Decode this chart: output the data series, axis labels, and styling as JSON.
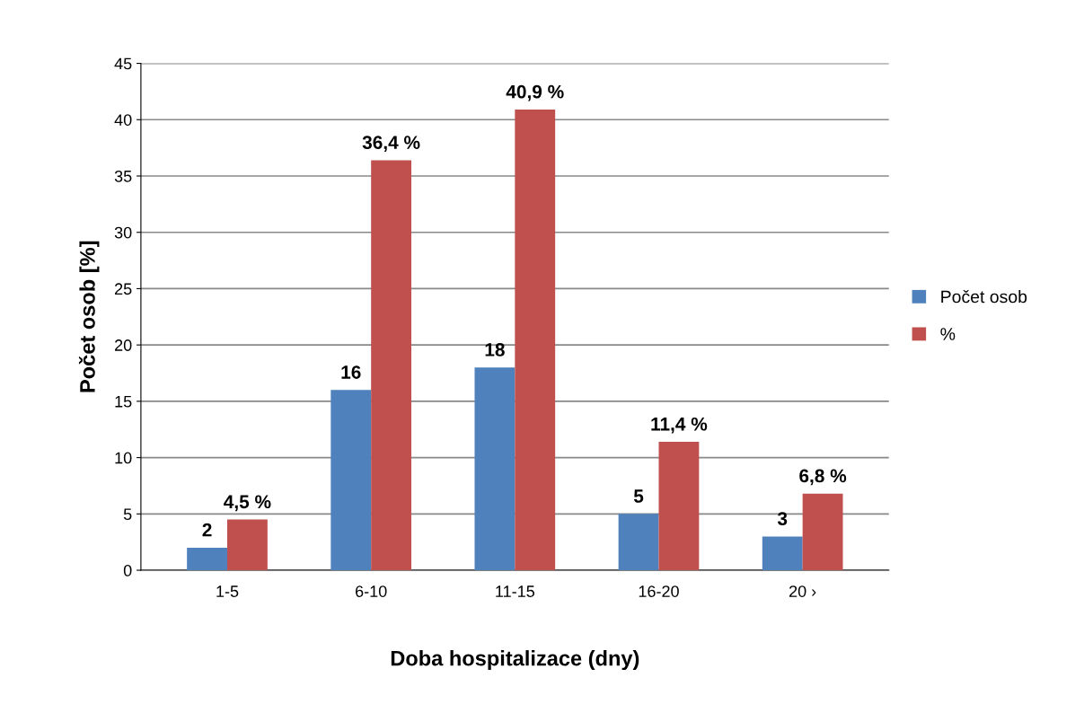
{
  "chart_data": {
    "type": "bar",
    "xlabel": "Doba hospitalizace (dny)",
    "ylabel": "Počet osob [%]",
    "categories": [
      "1-5",
      "6-10",
      "11-15",
      "16-20",
      "20 ›"
    ],
    "series": [
      {
        "name": "Počet osob",
        "color": "#4f81bd",
        "values": [
          2,
          16,
          18,
          5,
          3
        ],
        "value_labels": [
          "2",
          "16",
          "18",
          "5",
          "3"
        ]
      },
      {
        "name": "%",
        "color": "#c0504d",
        "values": [
          4.5,
          36.4,
          40.9,
          11.4,
          6.8
        ],
        "value_labels": [
          "4,5 %",
          "36,4 %",
          "40,9 %",
          "11,4 %",
          "6,8 %"
        ]
      }
    ],
    "ylim": [
      0,
      45
    ],
    "yticks": [
      0,
      5,
      10,
      15,
      20,
      25,
      30,
      35,
      40,
      45
    ],
    "grid": "y",
    "legend": "right"
  }
}
